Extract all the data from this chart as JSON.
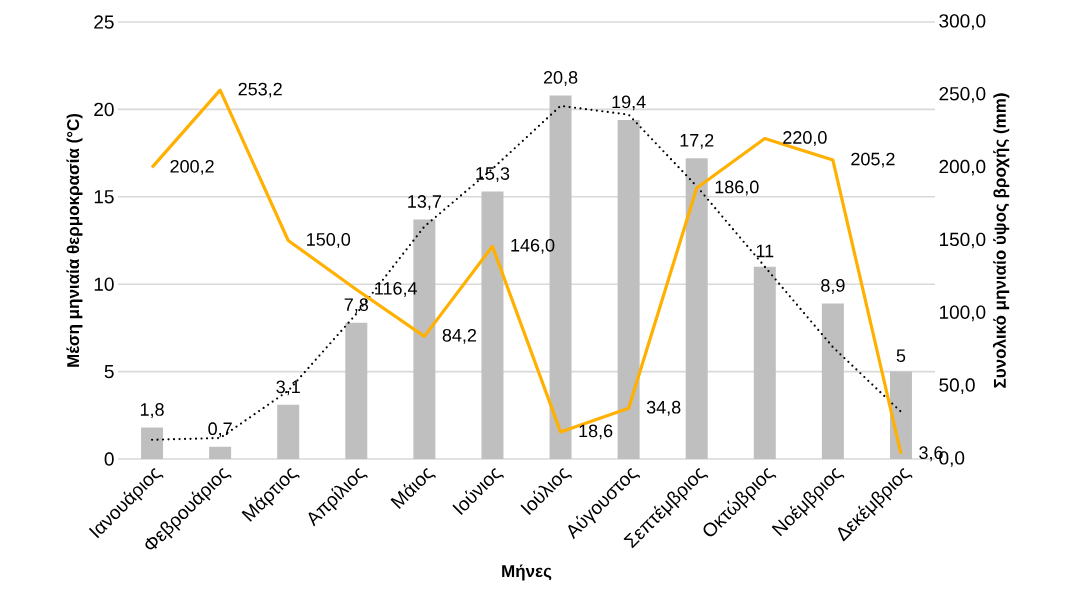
{
  "chart_data": {
    "type": "bar",
    "xlabel": "Μήνες",
    "ylabel": "Μέση μηνιαία θερμοκρασία (°C)",
    "y2label": "Συνολικό μηνιαίο ύψος βροχής (mm)",
    "categories": [
      "Ιανουάριος",
      "Φεβρουάριος",
      "Μάρτιος",
      "Απρίλιος",
      "Μάιος",
      "Ιούνιος",
      "Ιούλιος",
      "Αύγουστος",
      "Σεπτέμβριος",
      "Οκτώβριος",
      "Νοέμβριος",
      "Δεκέμβριος"
    ],
    "series": [
      {
        "color": "#bfbfbf",
        "values": [
          1.8,
          0.7,
          3.1,
          7.8,
          13.7,
          15.3,
          20.8,
          19.4,
          17.2,
          11,
          8.9,
          5
        ],
        "value_labels": [
          "1,8",
          "0,7",
          "3,1",
          "7,8",
          "13,7",
          "15,3",
          "20,8",
          "19,4",
          "17,2",
          "11",
          "8,9",
          "5"
        ]
      },
      {
        "type": "line",
        "axis": "y2",
        "color": "#ffb000",
        "values": [
          200.2,
          253.2,
          150.0,
          116.4,
          84.2,
          146.0,
          18.6,
          34.8,
          186.0,
          220.0,
          205.2,
          3.6
        ],
        "value_labels": [
          "200,2",
          "253,2",
          "150,0",
          "116,4",
          "84,2",
          "146,0",
          "18,6",
          "34,8",
          "186,0",
          "220,0",
          "205,2",
          "3,6"
        ]
      },
      {
        "type": "line",
        "color": "#000000",
        "line_style": "dotted",
        "values": [
          1.1,
          1.2,
          3.9,
          8.3,
          13.3,
          16.6,
          20.2,
          19.7,
          15.6,
          11.0,
          6.4,
          2.7
        ]
      }
    ],
    "ylim": [
      0,
      25
    ],
    "yticks": [
      0,
      5,
      10,
      15,
      20,
      25
    ],
    "y2lim": [
      0,
      300
    ],
    "y2ticks": [
      {
        "value": 0,
        "label": "0,0"
      },
      {
        "value": 50,
        "label": "50,0"
      },
      {
        "value": 100,
        "label": "100,0"
      },
      {
        "value": 150,
        "label": "150,0"
      },
      {
        "value": 200,
        "label": "200,0"
      },
      {
        "value": 250,
        "label": "250,0"
      },
      {
        "value": 300,
        "label": "300,0"
      }
    ],
    "grid": "y"
  }
}
